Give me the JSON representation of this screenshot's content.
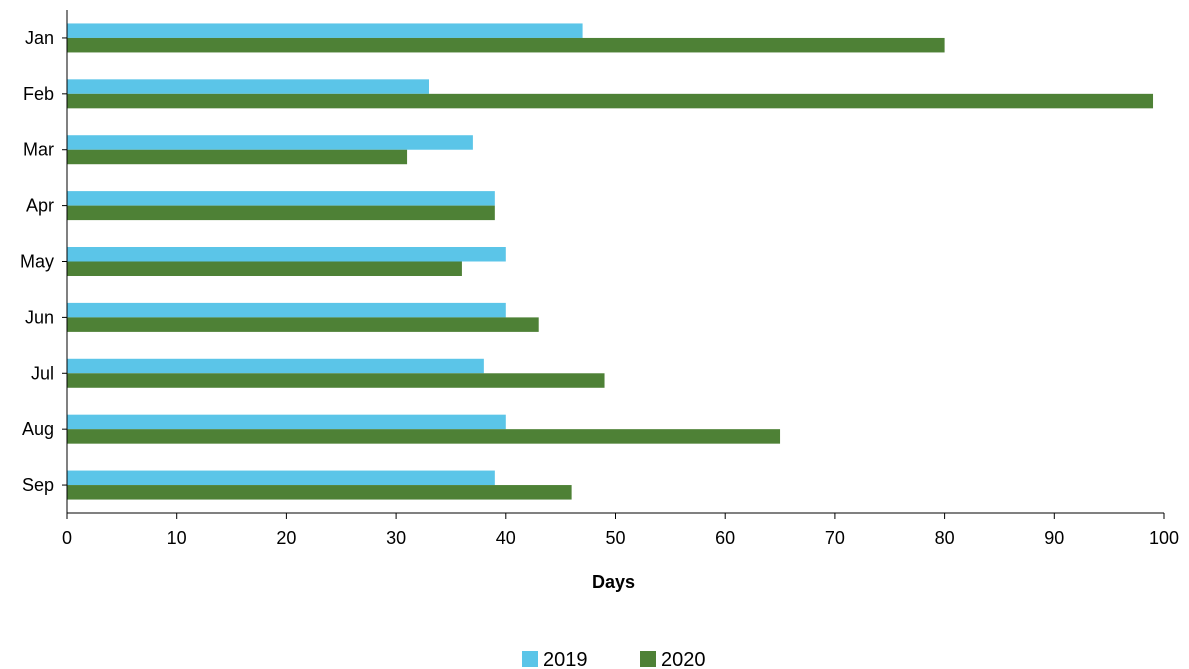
{
  "chart_data": {
    "type": "bar",
    "orientation": "horizontal",
    "categories": [
      "Jan",
      "Feb",
      "Mar",
      "Apr",
      "May",
      "Jun",
      "Jul",
      "Aug",
      "Sep"
    ],
    "series": [
      {
        "name": "2019",
        "color": "#5bc5e8",
        "values": [
          47,
          33,
          37,
          39,
          40,
          40,
          38,
          40,
          39
        ]
      },
      {
        "name": "2020",
        "color": "#4e8136",
        "values": [
          80,
          99,
          31,
          39,
          36,
          43,
          49,
          65,
          46
        ]
      }
    ],
    "title": "",
    "xlabel": "Days",
    "ylabel": "",
    "xlim": [
      0,
      100
    ],
    "xticks": [
      "0",
      "10",
      "20",
      "30",
      "40",
      "50",
      "60",
      "70",
      "80",
      "90",
      "100"
    ],
    "grid": false,
    "legend_position": "bottom-center"
  }
}
